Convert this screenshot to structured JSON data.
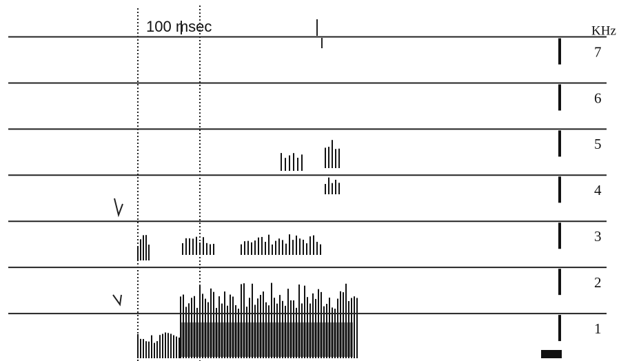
{
  "chart_data": {
    "type": "spectrogram",
    "annotation": "100 msec",
    "y_label": "KHz",
    "ylim": [
      0,
      7.8
    ],
    "yticks": [
      1,
      2,
      3,
      4,
      5,
      6,
      7
    ],
    "grid": true,
    "color": "#111111"
  }
}
